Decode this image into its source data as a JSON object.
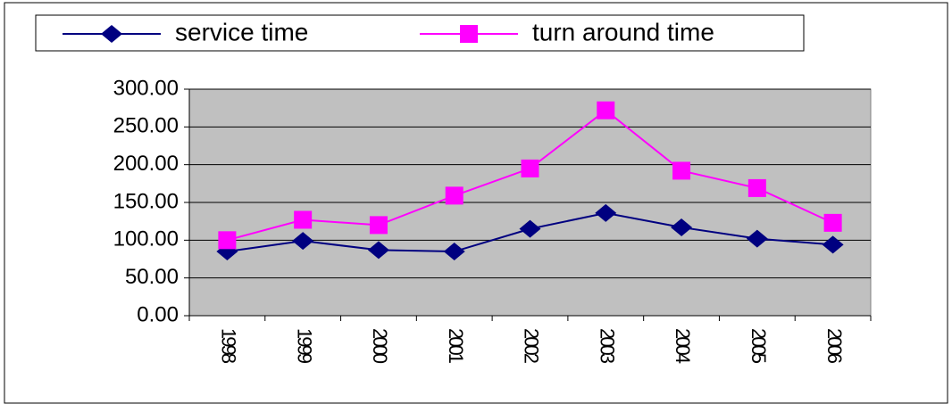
{
  "chart_data": {
    "type": "line",
    "categories": [
      "1998",
      "1999",
      "2000",
      "2001",
      "2002",
      "2003",
      "2004",
      "2005",
      "2006"
    ],
    "series": [
      {
        "name": "service time",
        "color": "#000080",
        "marker": "diamond",
        "values": [
          85,
          99,
          87,
          85,
          115,
          136,
          117,
          102,
          94
        ]
      },
      {
        "name": "turn around time",
        "color": "#ff00ff",
        "marker": "square",
        "values": [
          100,
          127,
          120,
          159,
          195,
          272,
          192,
          169,
          123
        ]
      }
    ],
    "ylim": [
      0,
      300
    ],
    "yticks": [
      {
        "value": 0,
        "label": "0.00"
      },
      {
        "value": 50,
        "label": "50.00"
      },
      {
        "value": 100,
        "label": "100.00"
      },
      {
        "value": 150,
        "label": "150.00"
      },
      {
        "value": 200,
        "label": "200.00"
      },
      {
        "value": 250,
        "label": "250.00"
      },
      {
        "value": 300,
        "label": "300.00"
      }
    ],
    "grid": true,
    "legend": "top",
    "plot_background": "#c0c0c0"
  }
}
